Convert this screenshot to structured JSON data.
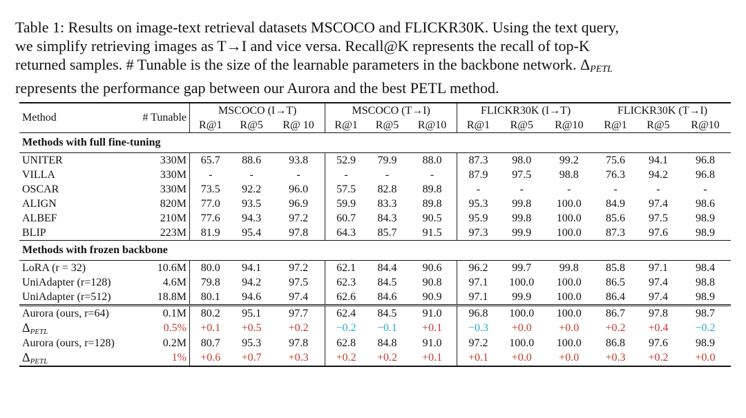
{
  "caption": {
    "line1": "Table 1: Results on image-text retrieval datasets MSCOCO and FLICKR30K. Using the text query,",
    "line2": "we simplify retrieving images as T→I and vice versa. Recall@K represents the recall of top-K",
    "line3": "returned samples. # Tunable is the size of the learnable parameters in the backbone network. Δ",
    "line3_sub": "PETL",
    "line4": "represents the performance gap between our Aurora and the best PETL method."
  },
  "header": {
    "method": "Method",
    "tunable": "# Tunable",
    "groups": [
      "MSCOCO (I→T)",
      "MSCOCO (T→I)",
      "FLICKR30K (I→T)",
      "FLICKR30K (T→I)"
    ],
    "metrics": [
      "R@1",
      "R@5",
      "R@ 10",
      "R@1",
      "R@5",
      "R@10",
      "R@1",
      "R@5",
      "R@10",
      "R@1",
      "R@5",
      "R@10"
    ]
  },
  "sections": {
    "full": "Methods with full fine-tuning",
    "frozen": "Methods with frozen backbone"
  },
  "full_rows": [
    {
      "method": "UNITER",
      "tunable": "330M",
      "v": [
        "65.7",
        "88.6",
        "93.8",
        "52.9",
        "79.9",
        "88.0",
        "87.3",
        "98.0",
        "99.2",
        "75.6",
        "94.1",
        "96.8"
      ]
    },
    {
      "method": "VILLA",
      "tunable": "330M",
      "v": [
        "-",
        "-",
        "-",
        "-",
        "-",
        "-",
        "87.9",
        "97.5",
        "98.8",
        "76.3",
        "94.2",
        "96.8"
      ]
    },
    {
      "method": "OSCAR",
      "tunable": "330M",
      "v": [
        "73.5",
        "92.2",
        "96.0",
        "57.5",
        "82.8",
        "89.8",
        "-",
        "-",
        "-",
        "-",
        "-",
        "-"
      ]
    },
    {
      "method": "ALIGN",
      "tunable": "820M",
      "v": [
        "77.0",
        "93.5",
        "96.9",
        "59.9",
        "83.3",
        "89.8",
        "95.3",
        "99.8",
        "100.0",
        "84.9",
        "97.4",
        "98.6"
      ]
    },
    {
      "method": "ALBEF",
      "tunable": "210M",
      "v": [
        "77.6",
        "94.3",
        "97.2",
        "60.7",
        "84.3",
        "90.5",
        "95.9",
        "99.8",
        "100.0",
        "85.6",
        "97.5",
        "98.9"
      ]
    },
    {
      "method": "BLIP",
      "tunable": "223M",
      "v": [
        "81.9",
        "95.4",
        "97.8",
        "64.3",
        "85.7",
        "91.5",
        "97.3",
        "99.9",
        "100.0",
        "87.3",
        "97.6",
        "98.9"
      ]
    }
  ],
  "frozen_rows": [
    {
      "method": "LoRA (r = 32)",
      "tunable": "10.6M",
      "v": [
        "80.0",
        "94.1",
        "97.2",
        "62.1",
        "84.4",
        "90.6",
        "96.2",
        "99.7",
        "99.8",
        "85.8",
        "97.1",
        "98.4"
      ]
    },
    {
      "method": "UniAdapter (r=128)",
      "tunable": "4.6M",
      "v": [
        "79.8",
        "94.2",
        "97.5",
        "62.3",
        "84.5",
        "90.8",
        "97.1",
        "100.0",
        "100.0",
        "86.5",
        "97.4",
        "98.8"
      ]
    },
    {
      "method": "UniAdapter (r=512)",
      "tunable": "18.8M",
      "v": [
        "80.1",
        "94.6",
        "97.4",
        "62.6",
        "84.6",
        "90.9",
        "97.1",
        "99.9",
        "100.0",
        "86.4",
        "97.4",
        "98.9"
      ]
    }
  ],
  "aurora_rows": [
    {
      "method": "Aurora (ours, r=64)",
      "tunable": "0.1M",
      "v": [
        "80.2",
        "95.1",
        "97.7",
        "62.4",
        "84.5",
        "91.0",
        "96.8",
        "100.0",
        "100.0",
        "86.7",
        "97.8",
        "98.7"
      ]
    },
    {
      "method": "Δ",
      "method_sub": "PETL",
      "tunable": "0.5%",
      "v": [
        "+0.1",
        "+0.5",
        "+0.2",
        "−0.2",
        "−0.1",
        "+0.1",
        "−0.3",
        "+0.0",
        "+0.0",
        "+0.2",
        "+0.4",
        "−0.2"
      ]
    },
    {
      "method": "Aurora (ours, r=128)",
      "tunable": "0.2M",
      "v": [
        "80.7",
        "95.3",
        "97.8",
        "62.8",
        "84.8",
        "91.0",
        "97.2",
        "100.0",
        "100.0",
        "86.8",
        "97.6",
        "98.9"
      ]
    },
    {
      "method": "Δ",
      "method_sub": "PETL",
      "tunable": "1%",
      "v": [
        "+0.6",
        "+0.7",
        "+0.3",
        "+0.2",
        "+0.2",
        "+0.1",
        "+0.1",
        "+0.0",
        "+0.0",
        "+0.3",
        "+0.2",
        "+0.0"
      ]
    }
  ],
  "colors": {
    "positive": "#c0392b",
    "negative": "#2fa4d8"
  }
}
